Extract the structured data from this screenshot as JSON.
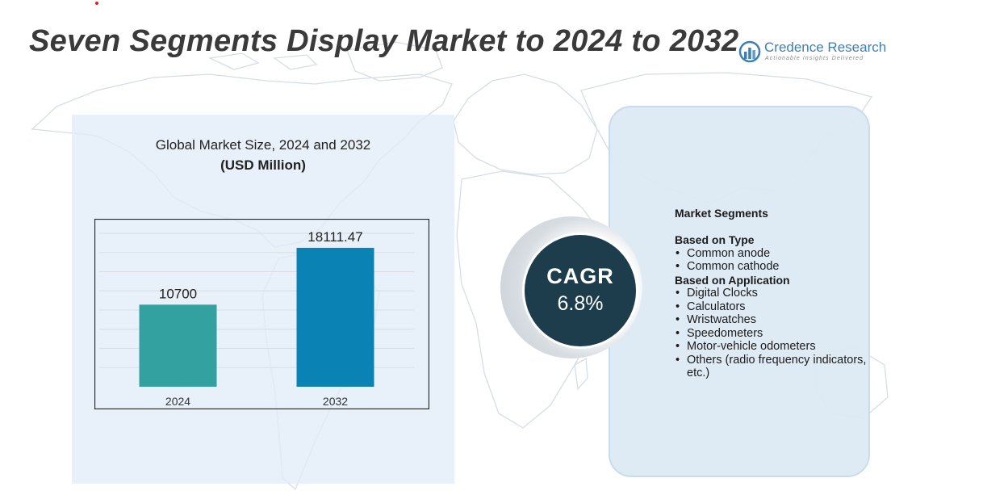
{
  "title": "Seven Segments Display Market to 2024 to 2032",
  "logo": {
    "name": "Credence Research",
    "tagline": "Actionable Insights Delivered"
  },
  "panel": {
    "title": "Global Market Size,  2024 and 2032",
    "unit": "(USD Million)"
  },
  "chart_data": {
    "type": "bar",
    "title": "Global Market Size, 2024 and 2032 (USD Million)",
    "categories": [
      "2024",
      "2032"
    ],
    "values": [
      10700,
      18111.47
    ],
    "value_labels": [
      "10700",
      "18111.47"
    ],
    "colors": [
      "#33a1a0",
      "#0a83b4"
    ],
    "ylim": [
      0,
      20000
    ],
    "grid": true,
    "xlabel": "",
    "ylabel": ""
  },
  "cagr": {
    "label": "CAGR",
    "value": "6.8%"
  },
  "segments": {
    "heading": "Market Segments",
    "groups": [
      {
        "title": "Based on Type",
        "items": [
          "Common anode",
          "Common cathode"
        ]
      },
      {
        "title": "Based on Application",
        "items": [
          "Digital Clocks",
          "Calculators",
          "Wristwatches",
          "Speedometers",
          "Motor-vehicle odometers",
          "Others (radio frequency indicators, etc.)"
        ]
      }
    ]
  },
  "colors": {
    "panel": "#e2ecf7",
    "cagr_circle": "#1e3d4c",
    "title": "#3a3a3a",
    "brand": "#3d7fb3"
  }
}
